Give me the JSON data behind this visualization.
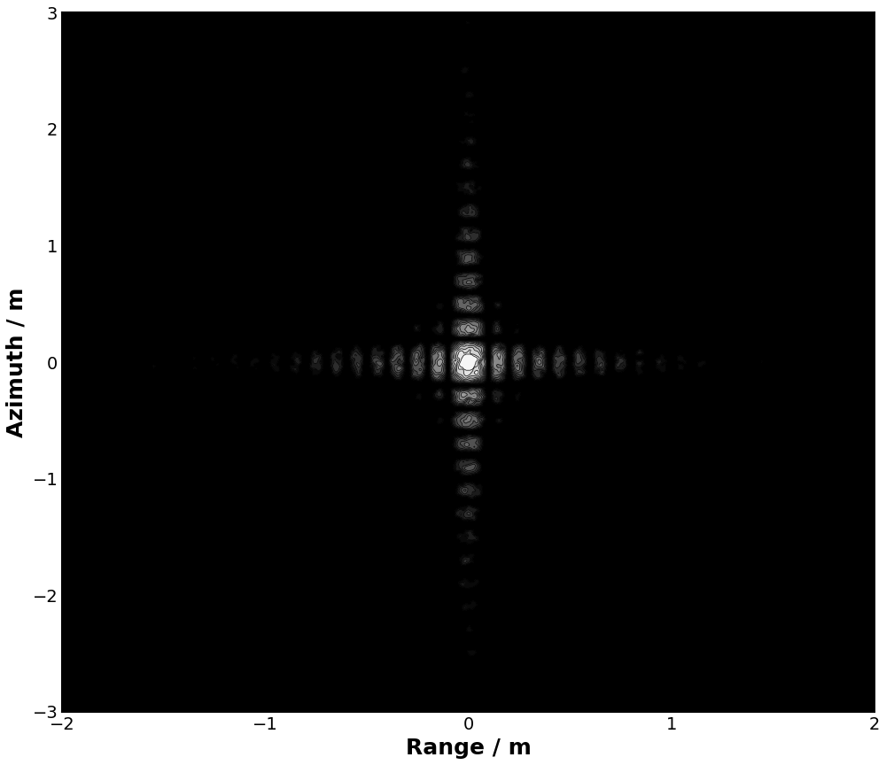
{
  "title": "",
  "xlabel": "Range / m",
  "ylabel": "Azimuth / m",
  "xlim": [
    -2,
    2
  ],
  "ylim": [
    -3,
    3
  ],
  "xticks": [
    -2,
    -1,
    0,
    1,
    2
  ],
  "yticks": [
    -3,
    -2,
    -1,
    0,
    1,
    2,
    3
  ],
  "xlabel_fontsize": 18,
  "ylabel_fontsize": 18,
  "tick_fontsize": 14,
  "range_resolution": 0.1,
  "azimuth_resolution": 0.2,
  "n_contour_levels": 15,
  "db_range": 35,
  "background_color": "#ffffff",
  "figsize": [
    10.0,
    8.64
  ]
}
